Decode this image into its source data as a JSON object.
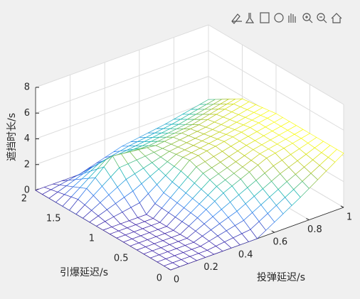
{
  "chart_data": {
    "type": "mesh",
    "xlabel": "投弹延迟/s",
    "ylabel": "引爆延迟/s",
    "zlabel": "遮挡时长/s",
    "x": [
      0,
      0.25,
      0.5,
      0.75,
      1
    ],
    "y": [
      0,
      0.5,
      1,
      1.5,
      2
    ],
    "z": [
      [
        0,
        0,
        0,
        2,
        4.2
      ],
      [
        0,
        0,
        2,
        3.5,
        4.2
      ],
      [
        0,
        0,
        3,
        3.6,
        4.2
      ],
      [
        0,
        3,
        2.6,
        3,
        3.8
      ],
      [
        0,
        0,
        1,
        1.5,
        2.2
      ]
    ],
    "xlim": [
      0,
      1
    ],
    "ylim": [
      0,
      2
    ],
    "zlim": [
      0,
      8
    ],
    "xticks": [
      0,
      0.2,
      0.4,
      0.6,
      0.8,
      1
    ],
    "yticks": [
      0,
      0.5,
      1,
      1.5,
      2
    ],
    "zticks": [
      0,
      2,
      4,
      6,
      8
    ],
    "grid": true
  }
}
